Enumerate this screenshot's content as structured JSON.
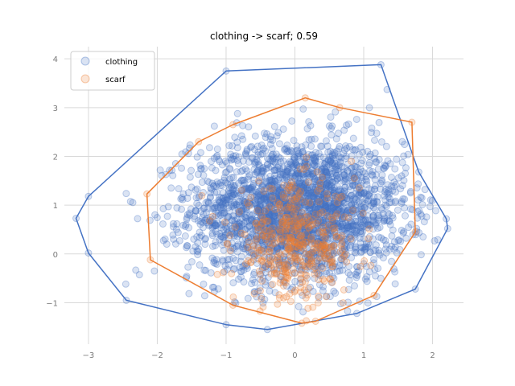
{
  "chart_data": {
    "type": "scatter",
    "title": "clothing -> scarf; 0.59",
    "xlabel": "",
    "ylabel": "",
    "xlim": [
      -3.35,
      2.45
    ],
    "ylim": [
      -1.85,
      4.25
    ],
    "xticks": [
      -3,
      -2,
      -1,
      0,
      1,
      2
    ],
    "yticks": [
      -1,
      0,
      1,
      2,
      3,
      4
    ],
    "grid": true,
    "legend_position": "top-left",
    "series": [
      {
        "name": "clothing",
        "color": "#4472c4",
        "hull": [
          [
            -3.18,
            0.73
          ],
          [
            -3.0,
            1.18
          ],
          [
            -1.0,
            3.75
          ],
          [
            1.25,
            3.88
          ],
          [
            1.8,
            1.68
          ],
          [
            2.2,
            0.72
          ],
          [
            2.22,
            0.52
          ],
          [
            1.75,
            -0.72
          ],
          [
            0.9,
            -1.22
          ],
          [
            -0.4,
            -1.55
          ],
          [
            -1.0,
            -1.45
          ],
          [
            -2.45,
            -0.95
          ],
          [
            -3.0,
            0.02
          ]
        ],
        "center": [
          0.05,
          0.9
        ],
        "spread": [
          0.78,
          0.72
        ],
        "count": 2600
      },
      {
        "name": "scarf",
        "color": "#ed7d31",
        "hull": [
          [
            -2.15,
            1.23
          ],
          [
            -1.4,
            2.3
          ],
          [
            -0.9,
            2.65
          ],
          [
            0.15,
            3.2
          ],
          [
            0.65,
            3.0
          ],
          [
            1.7,
            2.7
          ],
          [
            1.75,
            0.45
          ],
          [
            1.15,
            -0.85
          ],
          [
            0.3,
            -1.38
          ],
          [
            0.1,
            -1.42
          ],
          [
            -0.9,
            -1.05
          ],
          [
            -2.1,
            -0.12
          ]
        ],
        "center": [
          0.0,
          0.2
        ],
        "spread": [
          0.45,
          0.6
        ],
        "count": 420
      }
    ]
  }
}
